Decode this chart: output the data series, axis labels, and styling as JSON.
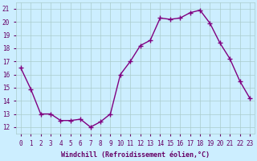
{
  "x": [
    0,
    1,
    2,
    3,
    4,
    5,
    6,
    7,
    8,
    9,
    10,
    11,
    12,
    13,
    14,
    15,
    16,
    17,
    18,
    19,
    20,
    21,
    22,
    23
  ],
  "y": [
    16.5,
    14.9,
    13.0,
    13.0,
    12.5,
    12.5,
    12.6,
    12.0,
    12.4,
    13.0,
    16.0,
    17.0,
    18.2,
    18.6,
    20.3,
    20.2,
    20.3,
    20.7,
    20.9,
    19.9,
    18.4,
    17.2,
    15.5,
    14.2
  ],
  "line_color": "#800080",
  "marker": "+",
  "marker_size": 4,
  "line_width": 1.0,
  "bg_color": "#cceeff",
  "grid_color": "#aacccc",
  "xlabel": "Windchill (Refroidissement éolien,°C)",
  "ylabel_ticks": [
    12,
    13,
    14,
    15,
    16,
    17,
    18,
    19,
    20,
    21
  ],
  "ylim": [
    11.5,
    21.5
  ],
  "xlim": [
    -0.5,
    23.5
  ],
  "xticks": [
    0,
    1,
    2,
    3,
    4,
    5,
    6,
    7,
    8,
    9,
    10,
    11,
    12,
    13,
    14,
    15,
    16,
    17,
    18,
    19,
    20,
    21,
    22,
    23
  ],
  "tick_color": "#660066",
  "label_fontsize": 6.0,
  "tick_fontsize": 5.5,
  "fig_width": 3.2,
  "fig_height": 2.0,
  "dpi": 100
}
